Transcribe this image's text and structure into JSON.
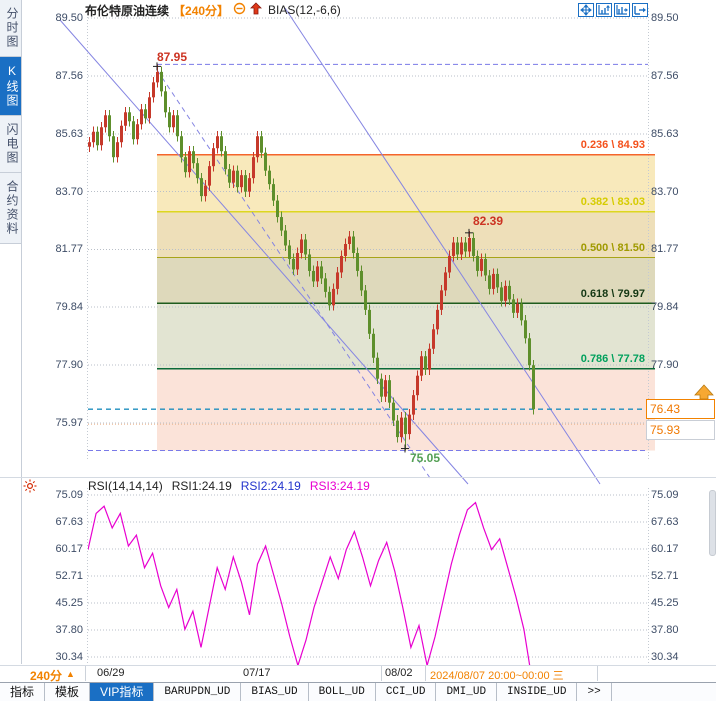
{
  "sidebar": {
    "items": [
      {
        "label": "分时图",
        "selected": false
      },
      {
        "label": "K线图",
        "selected": true
      },
      {
        "label": "闪电图",
        "selected": false
      },
      {
        "label": "合约资料",
        "selected": false
      }
    ]
  },
  "header": {
    "symbol": "布伦特原油连续",
    "period": "【240分】",
    "indicator": "BIAS(12,-6,6)"
  },
  "top_icons": [
    "move-icon",
    "axis-zoom-up-icon",
    "axis-shift-right-icon",
    "pane-expand-icon"
  ],
  "chart_data": [
    {
      "type": "candlestick",
      "title": "布伦特原油连续 240分",
      "y_ticks": [
        89.5,
        87.56,
        85.63,
        83.7,
        81.77,
        79.84,
        77.9,
        75.97
      ],
      "ylim": [
        74.2,
        89.8
      ],
      "x_ticks": [
        "06/29",
        "07/17",
        "08/02"
      ],
      "closes": [
        85.35,
        85.7,
        85.25,
        85.85,
        86.25,
        85.55,
        84.85,
        85.35,
        85.9,
        86.35,
        86.05,
        85.45,
        85.95,
        86.45,
        86.15,
        86.85,
        87.35,
        87.7,
        87.05,
        86.35,
        85.85,
        86.25,
        85.55,
        84.85,
        84.35,
        85.05,
        84.65,
        84.15,
        83.55,
        83.9,
        84.55,
        85.15,
        85.55,
        85.05,
        84.45,
        84.0,
        84.4,
        83.85,
        84.25,
        83.7,
        84.15,
        84.85,
        85.55,
        85.0,
        84.4,
        83.95,
        83.4,
        82.85,
        82.4,
        81.9,
        81.45,
        81.1,
        81.65,
        82.1,
        81.6,
        81.05,
        80.7,
        81.2,
        80.8,
        80.35,
        79.9,
        80.45,
        81.0,
        81.55,
        81.95,
        82.2,
        81.65,
        81.05,
        80.4,
        79.75,
        78.95,
        78.15,
        77.45,
        76.85,
        77.4,
        76.65,
        76.05,
        75.5,
        76.15,
        75.6,
        76.25,
        76.9,
        77.55,
        78.2,
        77.75,
        78.45,
        79.1,
        79.75,
        80.4,
        81.0,
        81.55,
        82.0,
        81.6,
        82.0,
        81.7,
        82.15,
        81.55,
        81.05,
        81.45,
        80.9,
        80.45,
        80.95,
        80.5,
        80.05,
        80.55,
        80.1,
        79.65,
        79.95,
        79.4,
        78.8,
        77.9,
        76.43
      ],
      "extremes": {
        "high": {
          "index": 17,
          "price": 87.95,
          "label": "87.95"
        },
        "swing_high": {
          "index": 95,
          "price": 82.39,
          "label": "82.39"
        },
        "low": {
          "index": 79,
          "price": 75.05,
          "label": "75.05"
        },
        "last_low": {
          "index": 111,
          "price": 76.25
        }
      },
      "last_price": "76.43",
      "ref_price": "75.93",
      "fib_levels": [
        {
          "label": "0.236 \\ 84.93",
          "ratio": 0.236,
          "price": 84.93
        },
        {
          "label": "0.382 \\ 83.03",
          "ratio": 0.382,
          "price": 83.03
        },
        {
          "label": "0.500 \\ 81.50",
          "ratio": 0.5,
          "price": 81.5
        },
        {
          "label": "0.618 \\ 79.97",
          "ratio": 0.618,
          "price": 79.97
        },
        {
          "label": "0.786 \\ 77.78",
          "ratio": 0.786,
          "price": 77.78
        }
      ]
    },
    {
      "type": "line",
      "name": "RSI",
      "params": "RSI(14,14,14)",
      "legend": {
        "rsi1": "RSI1:24.19",
        "rsi2": "RSI2:24.19",
        "rsi3": "RSI3:24.19"
      },
      "y_ticks": [
        75.09,
        67.63,
        60.17,
        52.71,
        45.25,
        37.8,
        30.34
      ],
      "values": [
        60,
        70,
        72,
        66,
        70,
        61,
        64,
        55,
        59,
        50,
        44,
        49,
        38,
        43,
        33,
        44,
        55,
        49,
        58,
        51,
        42,
        56,
        61,
        53,
        45,
        36,
        28,
        35,
        44,
        51,
        58,
        52,
        60,
        65,
        58,
        50,
        57,
        62,
        54,
        44,
        33,
        39,
        28,
        36,
        46,
        56,
        64,
        71,
        73,
        66,
        60,
        63,
        55,
        47,
        38,
        24
      ]
    }
  ],
  "time_axis": {
    "period": "240分",
    "labels": [
      {
        "text": "06/29",
        "x": 97
      },
      {
        "text": "07/17",
        "x": 243
      },
      {
        "text": "08/02",
        "x": 385
      }
    ],
    "current": "2024/08/07 20:00~00:00 三"
  },
  "toolbar": {
    "tabs": [
      {
        "label": "指标",
        "selected": false,
        "mono": false
      },
      {
        "label": "模板",
        "selected": false,
        "mono": false
      },
      {
        "label": "VIP指标",
        "selected": true,
        "mono": false
      },
      {
        "label": "BARUPDN_UD",
        "selected": false,
        "mono": true
      },
      {
        "label": "BIAS_UD",
        "selected": false,
        "mono": true
      },
      {
        "label": "BOLL_UD",
        "selected": false,
        "mono": true
      },
      {
        "label": "CCI_UD",
        "selected": false,
        "mono": true
      },
      {
        "label": "DMI_UD",
        "selected": false,
        "mono": true
      },
      {
        "label": "INSIDE_UD",
        "selected": false,
        "mono": true
      },
      {
        "label": ">>",
        "selected": false,
        "mono": true
      }
    ]
  },
  "colors": {
    "accent_orange": "#f28200",
    "selected_blue": "#1a6fc4",
    "candle_up": "#c6392b",
    "candle_down": "#5e8f2c",
    "rsi_line": "#e800d0"
  }
}
